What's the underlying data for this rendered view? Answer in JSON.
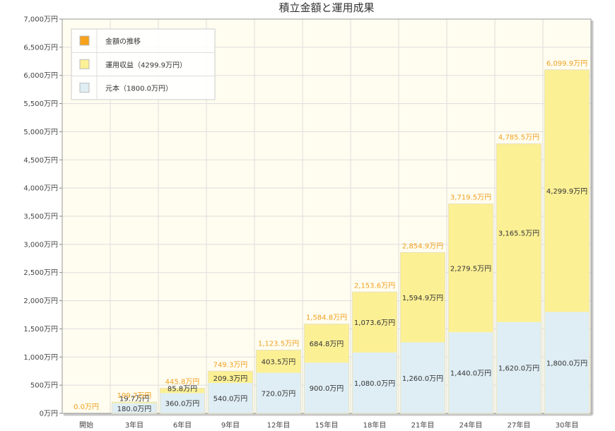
{
  "chart_data": {
    "type": "bar",
    "stacked": true,
    "title": "積立金額と運用成果",
    "categories": [
      "開始",
      "3年目",
      "6年目",
      "9年目",
      "12年目",
      "15年目",
      "18年目",
      "21年目",
      "24年目",
      "27年目",
      "30年目"
    ],
    "ylim": [
      0,
      7000
    ],
    "ytick_step": 500,
    "ytick_suffix": "万円",
    "series": [
      {
        "name": "元本（1800.0万円）",
        "color": "#dfeef5",
        "values": [
          0,
          180.0,
          360.0,
          540.0,
          720.0,
          900.0,
          1080.0,
          1260.0,
          1440.0,
          1620.0,
          1800.0
        ],
        "labels": [
          "",
          "180.0万円",
          "360.0万円",
          "540.0万円",
          "720.0万円",
          "900.0万円",
          "1,080.0万円",
          "1,260.0万円",
          "1,440.0万円",
          "1,620.0万円",
          "1,800.0万円"
        ]
      },
      {
        "name": "運用収益（4299.9万円）",
        "color": "#fcf095",
        "values": [
          0,
          19.7,
          85.8,
          209.3,
          403.5,
          684.8,
          1073.6,
          1594.9,
          2279.5,
          3165.5,
          4299.9
        ],
        "labels": [
          "",
          "19.7万円",
          "85.8万円",
          "209.3万円",
          "403.5万円",
          "684.8万円",
          "1,073.6万円",
          "1,594.9万円",
          "2,279.5万円",
          "3,165.5万円",
          "4,299.9万円"
        ]
      }
    ],
    "total_series": {
      "name": "金額の推移",
      "color": "#f7a21b",
      "labels": [
        "0.0万円",
        "199.7万円",
        "445.8万円",
        "749.3万円",
        "1,123.5万円",
        "1,584.8万円",
        "2,153.6万円",
        "2,854.9万円",
        "3,719.5万円",
        "4,785.5万円",
        "6,099.9万円"
      ],
      "values": [
        0,
        199.7,
        445.8,
        749.3,
        1123.5,
        1584.8,
        2153.6,
        2854.9,
        3719.5,
        4785.5,
        6099.9
      ]
    },
    "legend_position": "top-left",
    "grid": true
  }
}
